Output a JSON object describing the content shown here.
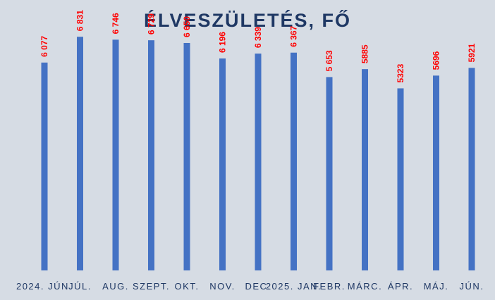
{
  "chart_data": {
    "type": "bar",
    "title": "ÉLVESZÜLETÉS, FŐ",
    "categories": [
      "2024. JÚN.",
      "JÚL.",
      "AUG.",
      "SZEPT.",
      "OKT.",
      "NOV.",
      "DEC.",
      "2025. JAN.",
      "FEBR.",
      "MÁRC.",
      "ÁPR.",
      "MÁJ.",
      "JÚN."
    ],
    "values": [
      6077,
      6831,
      6746,
      6729,
      6650,
      6196,
      6339,
      6367,
      5653,
      5885,
      5323,
      5696,
      5921
    ],
    "data_labels": [
      "6 077",
      "6 831",
      "6 746",
      "6 729",
      "6 650",
      "6 196",
      "6 339",
      "6 367",
      "5 653",
      "5885",
      "5323",
      "5696",
      "5921"
    ],
    "ylim": [
      0,
      7000
    ],
    "grid": false,
    "legend": "none",
    "colors": {
      "bar": "#4472c4",
      "label": "#ff0000",
      "title": "#1f3864",
      "axis_text": "#1f3864",
      "background": "#d6dce4"
    }
  }
}
